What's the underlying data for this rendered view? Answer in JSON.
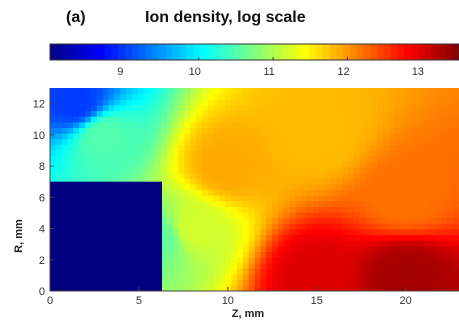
{
  "panel_label": "(a)",
  "chart_data": {
    "type": "heatmap",
    "title": "Ion density, log scale",
    "xlabel": "Z, mm",
    "ylabel": "R, mm",
    "xlim": [
      0,
      23
    ],
    "ylim": [
      0,
      13
    ],
    "x_ticks": [
      "0",
      "5",
      "10",
      "15",
      "20"
    ],
    "y_ticks": [
      "0",
      "2",
      "4",
      "6",
      "8",
      "10",
      "12"
    ],
    "colorbar": {
      "scale": "log",
      "range": [
        8,
        13.5
      ],
      "tick_labels": [
        "9",
        "10",
        "11",
        "12",
        "13"
      ],
      "colormap": "jet"
    },
    "electrode_region": {
      "z": [
        0,
        6.3
      ],
      "r": [
        0,
        7
      ],
      "value": "below colorbar min"
    },
    "field_samples": [
      {
        "z": 1.5,
        "r": 12.0,
        "log_density": 9.0
      },
      {
        "z": 3.0,
        "r": 10.0,
        "log_density": 10.5
      },
      {
        "z": 6.3,
        "r": 3.5,
        "log_density": 10.6
      },
      {
        "z": 8.0,
        "r": 4.0,
        "log_density": 11.2
      },
      {
        "z": 10.0,
        "r": 8.0,
        "log_density": 11.9
      },
      {
        "z": 15.0,
        "r": 10.0,
        "log_density": 11.8
      },
      {
        "z": 20.0,
        "r": 6.0,
        "log_density": 12.2
      },
      {
        "z": 15.0,
        "r": 1.0,
        "log_density": 13.0
      },
      {
        "z": 20.0,
        "r": 1.0,
        "log_density": 13.3
      }
    ]
  }
}
